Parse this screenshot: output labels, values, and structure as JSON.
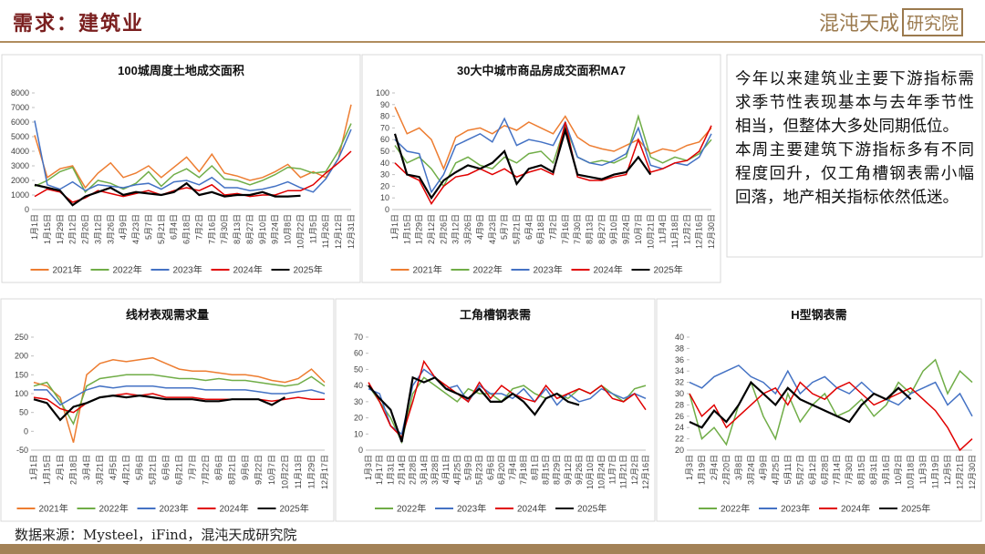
{
  "header": {
    "title": "需求：建筑业",
    "logo": "混沌天成",
    "logo_box": "研究院"
  },
  "commentary": [
    "今年以来建筑业主要下游指标需求季节性表现基本与去年季节性相当，但整体大多处同期低位。",
    "本周主要建筑下游指标多有不同程度回升，仅工角槽钢表需小幅回落，地产相关指标依然低迷。"
  ],
  "footer": "数据来源：Mysteel，iFind，混沌天成研究院",
  "chart_data": [
    {
      "type": "line",
      "title": "100城周度土地成交面积",
      "categories": [
        "1月1日",
        "1月15日",
        "1月29日",
        "2月12日",
        "2月26日",
        "3月12日",
        "3月26日",
        "4月9日",
        "4月23日",
        "5月7日",
        "5月21日",
        "6月4日",
        "6月18日",
        "7月2日",
        "7月16日",
        "7月30日",
        "8月13日",
        "8月27日",
        "9月10日",
        "9月24日",
        "10月8日",
        "10月22日",
        "11月5日",
        "11月26日",
        "12月12日",
        "12月31日"
      ],
      "ylim": [
        0,
        8000
      ],
      "yticks": [
        0,
        1000,
        2000,
        3000,
        4000,
        5000,
        6000,
        7000,
        8000
      ],
      "series": [
        {
          "name": "2021年",
          "color": "#ed7d31",
          "values": [
            5100,
            2200,
            2800,
            3000,
            1500,
            2500,
            3200,
            2200,
            2500,
            3000,
            2200,
            2900,
            3600,
            2600,
            3800,
            2500,
            2300,
            2000,
            2200,
            2600,
            3100,
            2200,
            2600,
            2200,
            3500,
            7200
          ]
        },
        {
          "name": "2022年",
          "color": "#70ad47",
          "values": [
            1600,
            2000,
            2600,
            2900,
            1200,
            2000,
            1800,
            1400,
            1800,
            2600,
            1600,
            2400,
            2800,
            2200,
            3000,
            2100,
            2000,
            1700,
            2000,
            2400,
            2900,
            2800,
            2500,
            2600,
            4000,
            5900
          ]
        },
        {
          "name": "2023年",
          "color": "#4472c4",
          "values": [
            6100,
            1700,
            1400,
            1900,
            1300,
            1700,
            1600,
            1500,
            1700,
            1800,
            1400,
            1900,
            2000,
            1700,
            2200,
            1500,
            1500,
            1300,
            1400,
            1600,
            1900,
            1500,
            1200,
            2100,
            3500,
            5500
          ]
        },
        {
          "name": "2024年",
          "color": "#e00000",
          "values": [
            900,
            1400,
            1200,
            500,
            800,
            1300,
            1100,
            900,
            1100,
            1300,
            1000,
            1300,
            1500,
            1300,
            1700,
            1000,
            1100,
            900,
            1000,
            1000,
            1300,
            1300,
            1700,
            2500,
            3200,
            4000
          ]
        },
        {
          "name": "2025年",
          "color": "#000000",
          "values": [
            1700,
            1500,
            1300,
            300,
            900,
            1200,
            1500,
            1000,
            1200,
            1100,
            1000,
            1200,
            1800,
            1000,
            1200,
            900,
            1000,
            1000,
            1200,
            900,
            900,
            950,
            null,
            null,
            null,
            null
          ]
        }
      ]
    },
    {
      "type": "line",
      "title": "30大中城市商品房成交面积MA7",
      "categories": [
        "1月1日",
        "1月15日",
        "1月29日",
        "2月12日",
        "2月26日",
        "3月12日",
        "3月26日",
        "4月9日",
        "4月23日",
        "5月7日",
        "5月21日",
        "6月4日",
        "6月18日",
        "7月2日",
        "7月16日",
        "7月30日",
        "8月13日",
        "8月27日",
        "9月10日",
        "9月24日",
        "10月7日",
        "10月21日",
        "11月4日",
        "11月18日",
        "12月2日",
        "12月16日",
        "12月30日"
      ],
      "ylim": [
        0,
        100
      ],
      "yticks": [
        0,
        10,
        20,
        30,
        40,
        50,
        60,
        70,
        80,
        90,
        100
      ],
      "series": [
        {
          "name": "2021年",
          "color": "#ed7d31",
          "values": [
            88,
            65,
            70,
            60,
            35,
            62,
            68,
            70,
            65,
            72,
            68,
            75,
            70,
            65,
            80,
            62,
            55,
            52,
            50,
            55,
            60,
            48,
            52,
            50,
            55,
            58,
            70
          ]
        },
        {
          "name": "2022年",
          "color": "#70ad47",
          "values": [
            55,
            40,
            45,
            35,
            20,
            40,
            45,
            38,
            35,
            45,
            40,
            48,
            50,
            40,
            72,
            45,
            40,
            42,
            40,
            45,
            80,
            45,
            40,
            45,
            42,
            48,
            60
          ]
        },
        {
          "name": "2023年",
          "color": "#4472c4",
          "values": [
            60,
            50,
            48,
            15,
            30,
            55,
            60,
            65,
            58,
            78,
            55,
            60,
            58,
            55,
            75,
            45,
            40,
            38,
            42,
            48,
            70,
            38,
            35,
            40,
            38,
            45,
            65
          ]
        },
        {
          "name": "2024年",
          "color": "#e00000",
          "values": [
            40,
            30,
            25,
            5,
            20,
            28,
            30,
            35,
            30,
            35,
            28,
            32,
            35,
            30,
            75,
            28,
            25,
            25,
            28,
            30,
            60,
            32,
            35,
            40,
            42,
            50,
            72
          ]
        },
        {
          "name": "2025年",
          "color": "#000000",
          "values": [
            65,
            30,
            28,
            10,
            25,
            32,
            38,
            35,
            40,
            50,
            22,
            35,
            38,
            32,
            68,
            30,
            28,
            26,
            30,
            32,
            45,
            30,
            null,
            null,
            null,
            null,
            null
          ]
        }
      ]
    },
    {
      "type": "line",
      "title": "线材表观需求量",
      "categories": [
        "1月1日",
        "1月15日",
        "2月1日",
        "2月18日",
        "3月4日",
        "3月21日",
        "4月5日",
        "4月21日",
        "5月6日",
        "5月21日",
        "6月6日",
        "6月21日",
        "7月7日",
        "7月22日",
        "8月6日",
        "8月21日",
        "9月6日",
        "9月22日",
        "10月7日",
        "10月22日",
        "11月13日",
        "11月29日",
        "12月17日"
      ],
      "ylim": [
        -50,
        250
      ],
      "yticks": [
        -50,
        0,
        50,
        100,
        150,
        200,
        250
      ],
      "series": [
        {
          "name": "2021年",
          "color": "#ed7d31",
          "values": [
            130,
            120,
            90,
            -30,
            150,
            180,
            190,
            185,
            190,
            195,
            180,
            165,
            160,
            160,
            155,
            150,
            150,
            145,
            135,
            130,
            140,
            165,
            130
          ]
        },
        {
          "name": "2022年",
          "color": "#70ad47",
          "values": [
            120,
            130,
            80,
            20,
            120,
            140,
            145,
            150,
            150,
            150,
            145,
            140,
            140,
            135,
            140,
            135,
            135,
            130,
            125,
            120,
            125,
            145,
            120
          ]
        },
        {
          "name": "2023年",
          "color": "#4472c4",
          "values": [
            110,
            110,
            70,
            90,
            110,
            120,
            115,
            120,
            120,
            120,
            115,
            115,
            115,
            110,
            110,
            110,
            110,
            105,
            100,
            100,
            105,
            110,
            100
          ]
        },
        {
          "name": "2024年",
          "color": "#e00000",
          "values": [
            90,
            85,
            60,
            50,
            75,
            90,
            95,
            100,
            95,
            100,
            90,
            90,
            90,
            85,
            85,
            85,
            85,
            85,
            80,
            85,
            90,
            85,
            85
          ]
        },
        {
          "name": "2025年",
          "color": "#000000",
          "values": [
            85,
            75,
            30,
            65,
            75,
            90,
            95,
            90,
            95,
            90,
            85,
            85,
            85,
            80,
            80,
            85,
            85,
            85,
            70,
            90,
            null,
            null,
            null
          ]
        }
      ]
    },
    {
      "type": "line",
      "title": "工角槽钢表需",
      "categories": [
        "1月3日",
        "1月17日",
        "1月31日",
        "2月14日",
        "2月28日",
        "3月14日",
        "3月28日",
        "4月11日",
        "4月25日",
        "5月9日",
        "5月23日",
        "6月6日",
        "6月20日",
        "7月4日",
        "7月18日",
        "8月1日",
        "8月15日",
        "8月29日",
        "9月12日",
        "9月26日",
        "10月10日",
        "10月24日",
        "11月7日",
        "11月21日",
        "12月2日",
        "12月16日"
      ],
      "ylim": [
        0,
        70
      ],
      "yticks": [
        0,
        10,
        20,
        30,
        40,
        50,
        60,
        70
      ],
      "series": [
        {
          "name": "2022年",
          "color": "#70ad47",
          "values": [
            40,
            30,
            20,
            5,
            35,
            45,
            40,
            35,
            30,
            38,
            35,
            35,
            30,
            38,
            40,
            35,
            32,
            35,
            32,
            38,
            35,
            40,
            35,
            30,
            38,
            40
          ]
        },
        {
          "name": "2023年",
          "color": "#4472c4",
          "values": [
            38,
            35,
            15,
            10,
            40,
            50,
            45,
            38,
            40,
            30,
            40,
            35,
            35,
            32,
            38,
            30,
            38,
            28,
            35,
            30,
            32,
            38,
            35,
            32,
            35,
            32
          ]
        },
        {
          "name": "2024年",
          "color": "#e00000",
          "values": [
            42,
            30,
            15,
            8,
            30,
            55,
            45,
            40,
            35,
            30,
            42,
            32,
            40,
            35,
            32,
            30,
            40,
            32,
            35,
            38,
            35,
            40,
            32,
            30,
            35,
            25
          ]
        },
        {
          "name": "2025年",
          "color": "#000000",
          "values": [
            40,
            32,
            25,
            5,
            45,
            42,
            45,
            38,
            35,
            32,
            38,
            30,
            30,
            35,
            30,
            22,
            32,
            35,
            30,
            28,
            null,
            null,
            null,
            null,
            null,
            null
          ]
        }
      ]
    },
    {
      "type": "line",
      "title": "H型钢表需",
      "categories": [
        "1月3日",
        "1月19日",
        "2月4日",
        "2月20日",
        "3月8日",
        "3月24日",
        "4月9日",
        "4月25日",
        "5月11日",
        "5月27日",
        "6月12日",
        "6月28日",
        "7月14日",
        "7月30日",
        "8月15日",
        "8月31日",
        "9月16日",
        "10月2日",
        "10月18日",
        "11月3日",
        "11月19日",
        "12月5日",
        "12月21日",
        "12月30日"
      ],
      "ylim": [
        20,
        40
      ],
      "yticks": [
        20,
        22,
        24,
        26,
        28,
        30,
        32,
        34,
        36,
        38,
        40
      ],
      "series": [
        {
          "name": "2022年",
          "color": "#70ad47",
          "values": [
            30,
            22,
            24,
            21,
            28,
            32,
            26,
            22,
            30,
            25,
            28,
            30,
            26,
            27,
            29,
            26,
            28,
            32,
            30,
            34,
            36,
            30,
            34,
            32
          ]
        },
        {
          "name": "2023年",
          "color": "#4472c4",
          "values": [
            32,
            31,
            33,
            34,
            35,
            33,
            32,
            30,
            34,
            30,
            32,
            33,
            31,
            30,
            32,
            30,
            29,
            28,
            30,
            31,
            32,
            28,
            30,
            26
          ]
        },
        {
          "name": "2024年",
          "color": "#e00000",
          "values": [
            30,
            26,
            28,
            24,
            26,
            28,
            30,
            31,
            28,
            32,
            30,
            29,
            31,
            32,
            30,
            28,
            29,
            30,
            31,
            29,
            27,
            24,
            20,
            22
          ]
        },
        {
          "name": "2025年",
          "color": "#000000",
          "values": [
            25,
            24,
            27,
            25,
            28,
            32,
            30,
            28,
            31,
            29,
            28,
            27,
            26,
            25,
            28,
            30,
            29,
            31,
            29,
            null,
            null,
            null,
            null,
            null
          ]
        }
      ]
    }
  ]
}
